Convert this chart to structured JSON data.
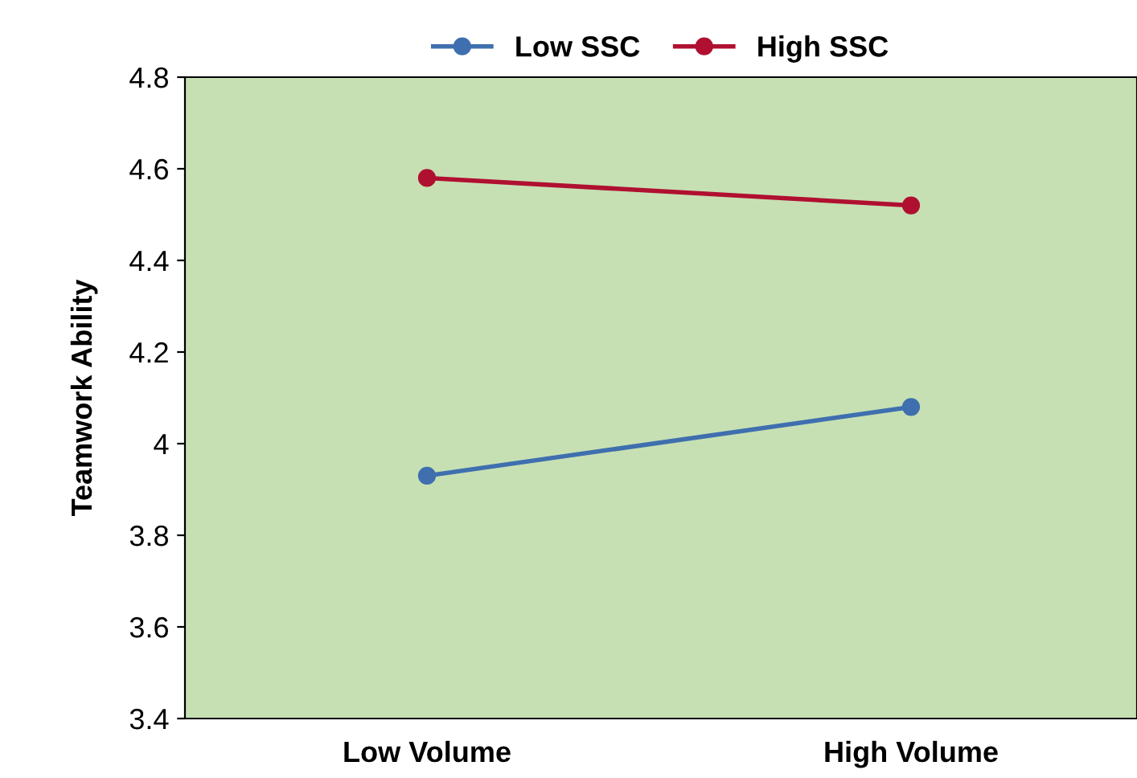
{
  "chart_data": {
    "type": "line",
    "ylabel": "Teamwork Ability",
    "categories": [
      "Low Volume",
      "High Volume"
    ],
    "series": [
      {
        "name": "Low SSC",
        "color": "#3f6fae",
        "values": [
          3.93,
          4.08
        ]
      },
      {
        "name": "High SSC",
        "color": "#b01030",
        "values": [
          4.58,
          4.52
        ]
      }
    ],
    "ylim": [
      3.4,
      4.8
    ],
    "yticks": [
      3.4,
      3.6,
      3.8,
      4,
      4.2,
      4.4,
      4.6,
      4.8
    ],
    "grid": false,
    "legend": "top",
    "marker": "circle",
    "line_style": "solid"
  }
}
